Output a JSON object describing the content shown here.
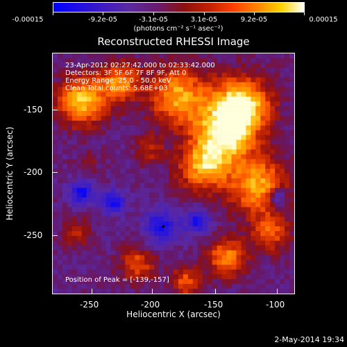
{
  "colorbar": {
    "tick_labels": [
      "-0.00015",
      "-9.2e-05",
      "-3.1e-05",
      "3.1e-05",
      "9.2e-05",
      "0.00015"
    ],
    "unit": "(photons cm⁻² s⁻¹ asec⁻²)"
  },
  "title": "Reconstructed RHESSI Image",
  "info": {
    "line1": "23-Apr-2012 02:27:42.000 to 02:33:42.000",
    "line2": "Detectors: 3F 5F 6F 7F 8F 9F, Att 0",
    "line3": "Energy Range: 25.0 - 50.0 keV",
    "line4": "Clean     Total counts: 5.68E+03",
    "peak": "Position of Peak = [-139,-157]"
  },
  "axes": {
    "xlabel": "Heliocentric X (arcsec)",
    "ylabel": "Heliocentric Y (arcsec)",
    "xticks": [
      "-250",
      "-200",
      "-150",
      "-100"
    ],
    "yticks": [
      "-150",
      "-200",
      "-250"
    ]
  },
  "footer": "2-May-2014 19:34"
}
